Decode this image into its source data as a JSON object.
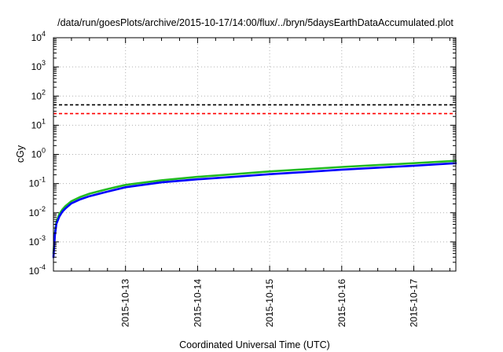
{
  "chart_data": {
    "type": "line",
    "title": "/data/run/goesPlots/archive/2015-10-17/14:00/flux/../bryn/5daysEarthDataAccumulated.plot",
    "xlabel": "Coordinated Universal Time (UTC)",
    "ylabel": "cGy",
    "y_scale": "log",
    "ylim": [
      0.0001,
      10000
    ],
    "xlim": [
      "2015-10-12 00:00",
      "2015-10-17 14:00"
    ],
    "grid": true,
    "y_ticks": [
      {
        "base": "10",
        "exp": "-4"
      },
      {
        "base": "10",
        "exp": "-3"
      },
      {
        "base": "10",
        "exp": "-2"
      },
      {
        "base": "10",
        "exp": "-1"
      },
      {
        "base": "10",
        "exp": "0"
      },
      {
        "base": "10",
        "exp": "1"
      },
      {
        "base": "10",
        "exp": "2"
      },
      {
        "base": "10",
        "exp": "3"
      },
      {
        "base": "10",
        "exp": "4"
      }
    ],
    "x_ticks": [
      "2015-10-13",
      "2015-10-14",
      "2015-10-15",
      "2015-10-16",
      "2015-10-17"
    ],
    "reference_lines": [
      {
        "y": 50,
        "color": "#000000",
        "style": "dashed"
      },
      {
        "y": 25,
        "color": "#ff0000",
        "style": "dashed"
      }
    ],
    "series": [
      {
        "color": "#22bb22",
        "x": [
          "2015-10-12 00:00",
          "2015-10-12 00:30",
          "2015-10-12 01:00",
          "2015-10-12 02:00",
          "2015-10-12 03:00",
          "2015-10-12 04:00",
          "2015-10-12 06:00",
          "2015-10-12 09:00",
          "2015-10-12 12:00",
          "2015-10-12 18:00",
          "2015-10-13 00:00",
          "2015-10-13 12:00",
          "2015-10-14 00:00",
          "2015-10-14 12:00",
          "2015-10-15 00:00",
          "2015-10-15 12:00",
          "2015-10-16 00:00",
          "2015-10-16 12:00",
          "2015-10-17 00:00",
          "2015-10-17 14:00"
        ],
        "y": [
          0.0004,
          0.002,
          0.005,
          0.009,
          0.013,
          0.017,
          0.025,
          0.035,
          0.045,
          0.065,
          0.09,
          0.13,
          0.17,
          0.21,
          0.26,
          0.31,
          0.37,
          0.43,
          0.5,
          0.6
        ]
      },
      {
        "color": "#0000ff",
        "x": [
          "2015-10-12 00:00",
          "2015-10-12 00:30",
          "2015-10-12 01:00",
          "2015-10-12 02:00",
          "2015-10-12 03:00",
          "2015-10-12 04:00",
          "2015-10-12 06:00",
          "2015-10-12 09:00",
          "2015-10-12 12:00",
          "2015-10-12 18:00",
          "2015-10-13 00:00",
          "2015-10-13 12:00",
          "2015-10-14 00:00",
          "2015-10-14 12:00",
          "2015-10-15 00:00",
          "2015-10-15 12:00",
          "2015-10-16 00:00",
          "2015-10-16 12:00",
          "2015-10-17 00:00",
          "2015-10-17 14:00"
        ],
        "y": [
          0.0003,
          0.0017,
          0.0042,
          0.0075,
          0.011,
          0.014,
          0.021,
          0.029,
          0.037,
          0.053,
          0.075,
          0.11,
          0.14,
          0.17,
          0.21,
          0.25,
          0.3,
          0.35,
          0.41,
          0.5
        ]
      }
    ]
  }
}
